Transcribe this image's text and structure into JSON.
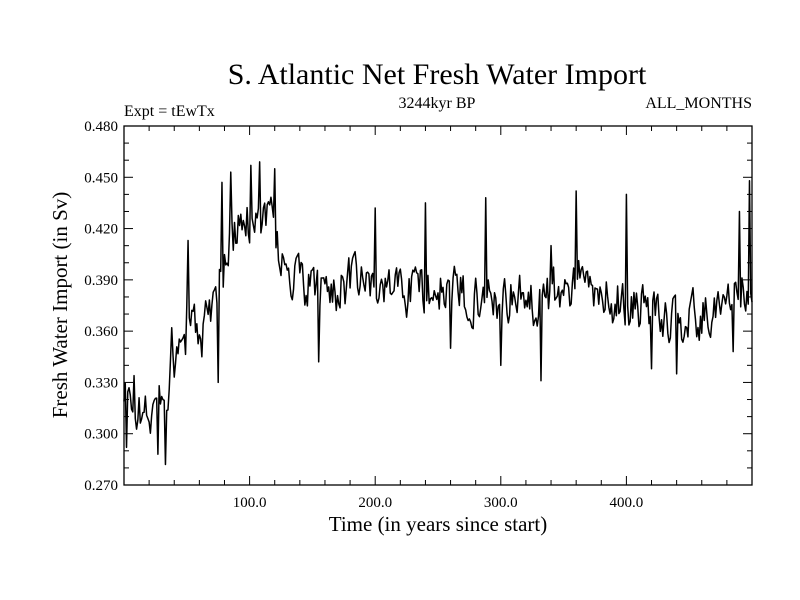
{
  "chart_data": {
    "type": "line",
    "title": "S. Atlantic Net Fresh Water Import",
    "subtitle_left": "Expt = tEwTx",
    "subtitle_center": "3244kyr BP",
    "subtitle_right": "ALL_MONTHS",
    "xlabel": "Time (in years since start)",
    "ylabel": "Fresh Water Import (in Sv)",
    "xlim": [
      0,
      500
    ],
    "ylim": [
      0.27,
      0.48
    ],
    "xticks": [
      100,
      200,
      300,
      400
    ],
    "xtick_labels": [
      "100.0",
      "200.0",
      "300.0",
      "400.0"
    ],
    "yticks": [
      0.27,
      0.3,
      0.33,
      0.36,
      0.39,
      0.42,
      0.45,
      0.48
    ],
    "ytick_labels": [
      "0.270",
      "0.300",
      "0.330",
      "0.360",
      "0.390",
      "0.420",
      "0.450",
      "0.480"
    ],
    "series": [
      {
        "name": "Net Fresh Water Import",
        "anchors": [
          [
            0,
            0.318
          ],
          [
            5,
            0.322
          ],
          [
            10,
            0.315
          ],
          [
            15,
            0.31
          ],
          [
            20,
            0.312
          ],
          [
            25,
            0.316
          ],
          [
            30,
            0.322
          ],
          [
            35,
            0.33
          ],
          [
            40,
            0.34
          ],
          [
            45,
            0.348
          ],
          [
            50,
            0.352
          ],
          [
            55,
            0.358
          ],
          [
            60,
            0.366
          ],
          [
            65,
            0.372
          ],
          [
            70,
            0.378
          ],
          [
            75,
            0.387
          ],
          [
            80,
            0.402
          ],
          [
            85,
            0.412
          ],
          [
            90,
            0.418
          ],
          [
            95,
            0.421
          ],
          [
            100,
            0.425
          ],
          [
            105,
            0.428
          ],
          [
            110,
            0.43
          ],
          [
            115,
            0.428
          ],
          [
            120,
            0.42
          ],
          [
            125,
            0.405
          ],
          [
            130,
            0.392
          ],
          [
            140,
            0.388
          ],
          [
            150,
            0.385
          ],
          [
            160,
            0.384
          ],
          [
            170,
            0.386
          ],
          [
            180,
            0.388
          ],
          [
            190,
            0.387
          ],
          [
            200,
            0.386
          ],
          [
            210,
            0.385
          ],
          [
            220,
            0.386
          ],
          [
            230,
            0.385
          ],
          [
            240,
            0.385
          ],
          [
            250,
            0.384
          ],
          [
            260,
            0.383
          ],
          [
            270,
            0.382
          ],
          [
            280,
            0.381
          ],
          [
            290,
            0.381
          ],
          [
            300,
            0.38
          ],
          [
            310,
            0.379
          ],
          [
            320,
            0.378
          ],
          [
            330,
            0.378
          ],
          [
            340,
            0.382
          ],
          [
            350,
            0.385
          ],
          [
            360,
            0.39
          ],
          [
            370,
            0.385
          ],
          [
            380,
            0.38
          ],
          [
            390,
            0.378
          ],
          [
            400,
            0.378
          ],
          [
            410,
            0.374
          ],
          [
            420,
            0.37
          ],
          [
            430,
            0.368
          ],
          [
            440,
            0.366
          ],
          [
            450,
            0.366
          ],
          [
            460,
            0.368
          ],
          [
            470,
            0.374
          ],
          [
            480,
            0.38
          ],
          [
            490,
            0.384
          ],
          [
            500,
            0.386
          ]
        ],
        "spikes": [
          [
            2,
            0.292
          ],
          [
            8,
            0.334
          ],
          [
            27,
            0.288
          ],
          [
            33,
            0.282
          ],
          [
            38,
            0.362
          ],
          [
            50,
            0.375
          ],
          [
            51,
            0.413
          ],
          [
            62,
            0.345
          ],
          [
            75,
            0.33
          ],
          [
            78,
            0.447
          ],
          [
            85,
            0.453
          ],
          [
            101,
            0.457
          ],
          [
            108,
            0.459
          ],
          [
            120,
            0.455
          ],
          [
            155,
            0.342
          ],
          [
            200,
            0.432
          ],
          [
            240,
            0.435
          ],
          [
            260,
            0.35
          ],
          [
            288,
            0.438
          ],
          [
            300,
            0.34
          ],
          [
            332,
            0.331
          ],
          [
            340,
            0.41
          ],
          [
            360,
            0.442
          ],
          [
            400,
            0.44
          ],
          [
            420,
            0.338
          ],
          [
            440,
            0.335
          ],
          [
            485,
            0.348
          ],
          [
            490,
            0.43
          ],
          [
            498,
            0.448
          ]
        ],
        "noise_amplitude": 0.014,
        "n_points": 500
      }
    ]
  }
}
